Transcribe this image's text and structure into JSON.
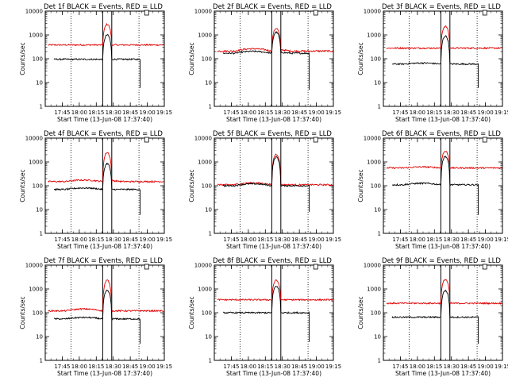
{
  "chart_data": [
    {
      "type": "line",
      "title": "Det 1f BLACK = Events, RED = LLD",
      "xlabel": "Start Time (13-Jun-08 17:37:40)",
      "ylabel": "Counts/sec",
      "yscale": "log",
      "ylim": [
        1,
        10000
      ],
      "yticks": [
        "1",
        "10",
        "100",
        "1000",
        "10000"
      ],
      "xlim": [
        -7.67,
        97.33
      ],
      "xticks": [
        "17:45",
        "18:00",
        "18:15",
        "18:30",
        "18:45",
        "19:00",
        "19:15"
      ],
      "vlines_dotted": [
        15,
        75
      ],
      "vlines_solid": [
        43,
        51
      ],
      "grid": false,
      "legend": "title",
      "series": [
        {
          "name": "RED",
          "color": "#e00000",
          "base": 380,
          "peak": 2800,
          "pre": 0,
          "post": 0,
          "end": 97
        },
        {
          "name": "BLACK",
          "color": "#000000",
          "base": 95,
          "peak": 1000,
          "pre": 0,
          "post": 0,
          "end": 76,
          "drop": 6
        }
      ]
    },
    {
      "type": "line",
      "title": "Det 2f BLACK = Events, RED = LLD",
      "xlabel": "Start Time (13-Jun-08 17:37:40)",
      "ylabel": "Counts/sec",
      "yscale": "log",
      "ylim": [
        1,
        10000
      ],
      "yticks": [
        "1",
        "10",
        "100",
        "1000",
        "10000"
      ],
      "xlim": [
        -7.67,
        97.33
      ],
      "xticks": [
        "17:45",
        "18:00",
        "18:15",
        "18:30",
        "18:45",
        "19:00",
        "19:15"
      ],
      "vlines_dotted": [
        15,
        75
      ],
      "vlines_solid": [
        43,
        51
      ],
      "grid": false,
      "legend": "title",
      "series": [
        {
          "name": "RED",
          "color": "#e00000",
          "base": 210,
          "peak": 1900,
          "pre": 0.25,
          "post": 0.15,
          "end": 97
        },
        {
          "name": "BLACK",
          "color": "#000000",
          "base": 170,
          "peak": 1300,
          "pre": 0.2,
          "post": 0.1,
          "end": 76,
          "drop": 5
        }
      ]
    },
    {
      "type": "line",
      "title": "Det 3f BLACK = Events, RED = LLD",
      "xlabel": "Start Time (13-Jun-08 17:37:40)",
      "ylabel": "Counts/sec",
      "yscale": "log",
      "ylim": [
        1,
        10000
      ],
      "yticks": [
        "1",
        "10",
        "100",
        "1000",
        "10000"
      ],
      "xlim": [
        -7.67,
        97.33
      ],
      "xticks": [
        "17:45",
        "18:00",
        "18:15",
        "18:30",
        "18:45",
        "19:00",
        "19:15"
      ],
      "vlines_dotted": [
        15,
        75
      ],
      "vlines_solid": [
        43,
        51
      ],
      "grid": false,
      "legend": "title",
      "series": [
        {
          "name": "RED",
          "color": "#e00000",
          "base": 280,
          "peak": 2300,
          "pre": 0,
          "post": 0,
          "end": 97
        },
        {
          "name": "BLACK",
          "color": "#000000",
          "base": 60,
          "peak": 900,
          "pre": 0.1,
          "post": 0,
          "end": 76,
          "drop": 6
        }
      ]
    },
    {
      "type": "line",
      "title": "Det 4f BLACK = Events, RED = LLD",
      "xlabel": "Start Time (13-Jun-08 17:37:40)",
      "ylabel": "Counts/sec",
      "yscale": "log",
      "ylim": [
        1,
        10000
      ],
      "yticks": [
        "1",
        "10",
        "100",
        "1000",
        "10000"
      ],
      "xlim": [
        -7.67,
        97.33
      ],
      "xticks": [
        "17:45",
        "18:00",
        "18:15",
        "18:30",
        "18:45",
        "19:00",
        "19:15"
      ],
      "vlines_dotted": [
        15,
        75
      ],
      "vlines_solid": [
        43,
        51
      ],
      "grid": false,
      "legend": "title",
      "series": [
        {
          "name": "RED",
          "color": "#e00000",
          "base": 150,
          "peak": 2500,
          "pre": 0.15,
          "post": 0.1,
          "end": 97
        },
        {
          "name": "BLACK",
          "color": "#000000",
          "base": 70,
          "peak": 850,
          "pre": 0.15,
          "post": 0,
          "end": 76,
          "drop": 6
        }
      ]
    },
    {
      "type": "line",
      "title": "Det 5f BLACK = Events, RED = LLD",
      "xlabel": "Start Time (13-Jun-08 17:37:40)",
      "ylabel": "Counts/sec",
      "yscale": "log",
      "ylim": [
        1,
        10000
      ],
      "yticks": [
        "1",
        "10",
        "100",
        "1000",
        "10000"
      ],
      "xlim": [
        -7.67,
        97.33
      ],
      "xticks": [
        "17:45",
        "18:00",
        "18:15",
        "18:30",
        "18:45",
        "19:00",
        "19:15"
      ],
      "vlines_dotted": [
        15,
        75
      ],
      "vlines_solid": [
        43,
        51
      ],
      "grid": false,
      "legend": "title",
      "series": [
        {
          "name": "RED",
          "color": "#e00000",
          "base": 110,
          "peak": 2100,
          "pre": 0.2,
          "post": 0,
          "end": 97
        },
        {
          "name": "BLACK",
          "color": "#000000",
          "base": 100,
          "peak": 1600,
          "pre": 0.2,
          "post": 0,
          "end": 76,
          "drop": 8
        }
      ]
    },
    {
      "type": "line",
      "title": "Det 6f BLACK = Events, RED = LLD",
      "xlabel": "Start Time (13-Jun-08 17:37:40)",
      "ylabel": "Counts/sec",
      "yscale": "log",
      "ylim": [
        1,
        10000
      ],
      "yticks": [
        "1",
        "10",
        "100",
        "1000",
        "10000"
      ],
      "xlim": [
        -7.67,
        97.33
      ],
      "xticks": [
        "17:45",
        "18:00",
        "18:15",
        "18:30",
        "18:45",
        "19:00",
        "19:15"
      ],
      "vlines_dotted": [
        15,
        75
      ],
      "vlines_solid": [
        43,
        51
      ],
      "grid": false,
      "legend": "title",
      "series": [
        {
          "name": "RED",
          "color": "#e00000",
          "base": 560,
          "peak": 2800,
          "pre": 0.1,
          "post": 0,
          "end": 97
        },
        {
          "name": "BLACK",
          "color": "#000000",
          "base": 110,
          "peak": 1700,
          "pre": 0.15,
          "post": 0,
          "end": 76,
          "drop": 6
        }
      ]
    },
    {
      "type": "line",
      "title": "Det 7f BLACK = Events, RED = LLD",
      "xlabel": "Start Time (13-Jun-08 17:37:40)",
      "ylabel": "Counts/sec",
      "yscale": "log",
      "ylim": [
        1,
        10000
      ],
      "yticks": [
        "1",
        "10",
        "100",
        "1000",
        "10000"
      ],
      "xlim": [
        -7.67,
        97.33
      ],
      "xticks": [
        "17:45",
        "18:00",
        "18:15",
        "18:30",
        "18:45",
        "19:00",
        "19:15"
      ],
      "vlines_dotted": [
        15,
        75
      ],
      "vlines_solid": [
        43,
        51
      ],
      "grid": false,
      "legend": "title",
      "series": [
        {
          "name": "RED",
          "color": "#e00000",
          "base": 120,
          "peak": 2300,
          "pre": 0.2,
          "post": 0,
          "end": 97
        },
        {
          "name": "BLACK",
          "color": "#000000",
          "base": 55,
          "peak": 850,
          "pre": 0.15,
          "post": 0,
          "end": 76,
          "drop": 5
        }
      ]
    },
    {
      "type": "line",
      "title": "Det 8f BLACK = Events, RED = LLD",
      "xlabel": "Start Time (13-Jun-08 17:37:40)",
      "ylabel": "Counts/sec",
      "yscale": "log",
      "ylim": [
        1,
        10000
      ],
      "yticks": [
        "1",
        "10",
        "100",
        "1000",
        "10000"
      ],
      "xlim": [
        -7.67,
        97.33
      ],
      "xticks": [
        "17:45",
        "18:00",
        "18:15",
        "18:30",
        "18:45",
        "19:00",
        "19:15"
      ],
      "vlines_dotted": [
        15,
        75
      ],
      "vlines_solid": [
        43,
        51
      ],
      "grid": false,
      "legend": "title",
      "series": [
        {
          "name": "RED",
          "color": "#e00000",
          "base": 350,
          "peak": 2300,
          "pre": 0,
          "post": 0,
          "end": 97
        },
        {
          "name": "BLACK",
          "color": "#000000",
          "base": 100,
          "peak": 1300,
          "pre": 0,
          "post": 0,
          "end": 76,
          "drop": 6
        }
      ]
    },
    {
      "type": "line",
      "title": "Det 9f BLACK = Events, RED = LLD",
      "xlabel": "Start Time (13-Jun-08 17:37:40)",
      "ylabel": "Counts/sec",
      "yscale": "log",
      "ylim": [
        1,
        10000
      ],
      "yticks": [
        "1",
        "10",
        "100",
        "1000",
        "10000"
      ],
      "xlim": [
        -7.67,
        97.33
      ],
      "xticks": [
        "17:45",
        "18:00",
        "18:15",
        "18:30",
        "18:45",
        "19:00",
        "19:15"
      ],
      "vlines_dotted": [
        15,
        75
      ],
      "vlines_solid": [
        43,
        51
      ],
      "grid": false,
      "legend": "title",
      "series": [
        {
          "name": "RED",
          "color": "#e00000",
          "base": 250,
          "peak": 2500,
          "pre": 0,
          "post": 0,
          "end": 97
        },
        {
          "name": "BLACK",
          "color": "#000000",
          "base": 65,
          "peak": 850,
          "pre": 0,
          "post": 0,
          "end": 76,
          "drop": 5
        }
      ]
    }
  ]
}
